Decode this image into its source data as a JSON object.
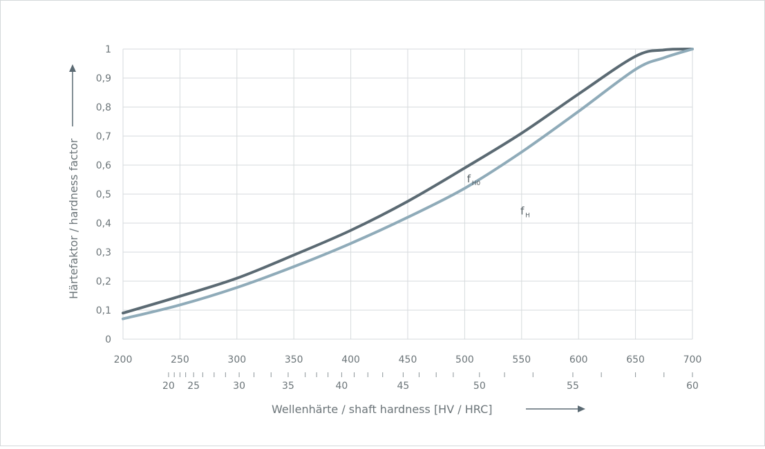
{
  "chart_data": {
    "type": "line",
    "xlabel": "Wellenhärte / shaft hardness [HV / HRC]",
    "ylabel": "Härtefaktor / hardness factor",
    "xlim": [
      200,
      700
    ],
    "ylim": [
      0,
      1
    ],
    "x_ticks": [
      200,
      250,
      300,
      350,
      400,
      450,
      500,
      550,
      600,
      650,
      700
    ],
    "y_ticks": [
      {
        "value": 0,
        "label": "0"
      },
      {
        "value": 0.1,
        "label": "0,1"
      },
      {
        "value": 0.2,
        "label": "0,2"
      },
      {
        "value": 0.3,
        "label": "0,3"
      },
      {
        "value": 0.4,
        "label": "0,4"
      },
      {
        "value": 0.5,
        "label": "0,5"
      },
      {
        "value": 0.6,
        "label": "0,6"
      },
      {
        "value": 0.7,
        "label": "0,7"
      },
      {
        "value": 0.8,
        "label": "0,8"
      },
      {
        "value": 0.9,
        "label": "0,9"
      },
      {
        "value": 1,
        "label": "1"
      }
    ],
    "grid": true,
    "secondary_axis": {
      "unit": "HRC",
      "labeled_ticks": [
        {
          "label": "20",
          "hv": 240
        },
        {
          "label": "25",
          "hv": 262
        },
        {
          "label": "30",
          "hv": 302
        },
        {
          "label": "35",
          "hv": 345
        },
        {
          "label": "40",
          "hv": 392
        },
        {
          "label": "45",
          "hv": 446
        },
        {
          "label": "50",
          "hv": 513
        },
        {
          "label": "55",
          "hv": 595
        },
        {
          "label": "60",
          "hv": 700
        }
      ],
      "minor_ticks_hv": [
        240,
        245,
        250,
        255,
        262,
        270,
        280,
        290,
        302,
        315,
        330,
        345,
        360,
        370,
        380,
        392,
        403,
        415,
        428,
        446,
        460,
        475,
        490,
        513,
        535,
        560,
        595,
        620,
        650,
        675,
        700
      ]
    },
    "series": [
      {
        "name": "f",
        "name_sub": "H0",
        "color": "#5b6a73",
        "points": [
          [
            200,
            0.09
          ],
          [
            250,
            0.148
          ],
          [
            300,
            0.21
          ],
          [
            350,
            0.29
          ],
          [
            400,
            0.375
          ],
          [
            450,
            0.475
          ],
          [
            500,
            0.59
          ],
          [
            550,
            0.71
          ],
          [
            600,
            0.845
          ],
          [
            650,
            0.975
          ],
          [
            675,
            0.997
          ],
          [
            700,
            1.0
          ]
        ],
        "label_at": [
          502,
          0.54
        ]
      },
      {
        "name": "f",
        "name_sub": "H",
        "color": "#8fabb9",
        "points": [
          [
            200,
            0.07
          ],
          [
            250,
            0.118
          ],
          [
            300,
            0.178
          ],
          [
            350,
            0.25
          ],
          [
            400,
            0.33
          ],
          [
            450,
            0.42
          ],
          [
            500,
            0.52
          ],
          [
            550,
            0.645
          ],
          [
            600,
            0.785
          ],
          [
            650,
            0.93
          ],
          [
            675,
            0.97
          ],
          [
            700,
            1.0
          ]
        ],
        "label_at": [
          549,
          0.43
        ]
      }
    ]
  }
}
